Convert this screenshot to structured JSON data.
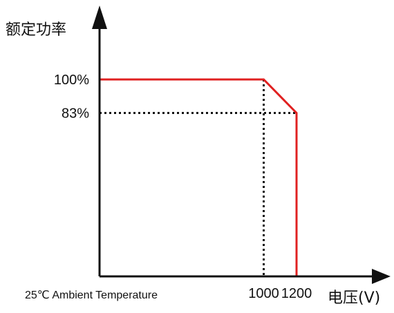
{
  "chart_data": {
    "type": "line",
    "ylabel": "额定功率",
    "xlabel": "电压(V)",
    "note": "25℃ Ambient Temperature",
    "x_ticks": [
      "1000",
      "1200"
    ],
    "y_ticks": [
      "100%",
      "83%"
    ],
    "ylim": [
      0,
      120
    ],
    "xlim": [
      0,
      1400
    ],
    "series": [
      {
        "x": [
          0,
          1000,
          1200,
          1200
        ],
        "y": [
          100,
          100,
          83,
          0
        ]
      }
    ],
    "reference_lines": [
      {
        "axis": "y",
        "value": 83
      },
      {
        "axis": "x",
        "value": 1000
      }
    ],
    "colors": {
      "series": "#e02020",
      "axes": "#111111",
      "reference": "#111111"
    }
  }
}
